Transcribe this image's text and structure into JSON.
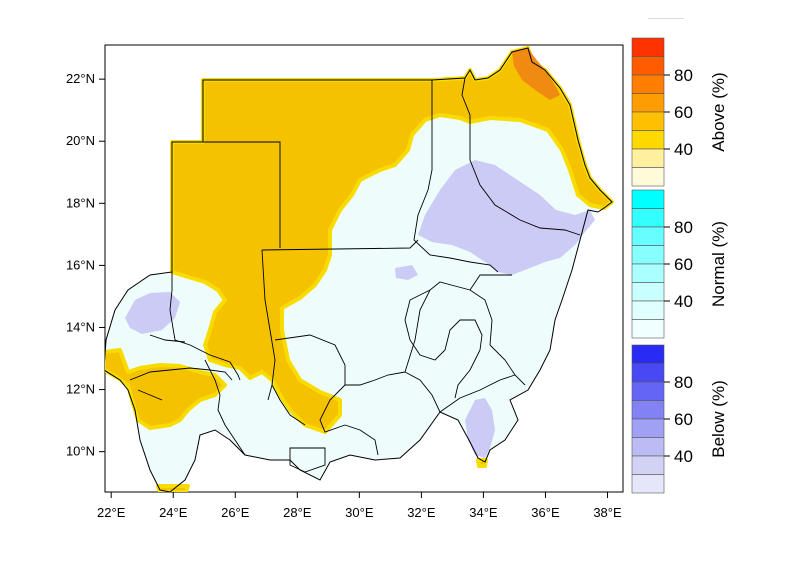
{
  "map": {
    "x_axis": {
      "ticks": [
        {
          "value": 22,
          "label": "22°E"
        },
        {
          "value": 24,
          "label": "24°E"
        },
        {
          "value": 26,
          "label": "26°E"
        },
        {
          "value": 28,
          "label": "28°E"
        },
        {
          "value": 30,
          "label": "30°E"
        },
        {
          "value": 32,
          "label": "32°E"
        },
        {
          "value": 34,
          "label": "34°E"
        },
        {
          "value": 36,
          "label": "36°E"
        },
        {
          "value": 38,
          "label": "38°E"
        }
      ]
    },
    "y_axis": {
      "ticks": [
        {
          "value": 22,
          "label": "22°N"
        },
        {
          "value": 20,
          "label": "20°N"
        },
        {
          "value": 18,
          "label": "18°N"
        },
        {
          "value": 16,
          "label": "16°N"
        },
        {
          "value": 14,
          "label": "14°N"
        },
        {
          "value": 12,
          "label": "12°N"
        },
        {
          "value": 10,
          "label": "10°N"
        }
      ]
    },
    "colors": {
      "above_region": "#f5c200",
      "above_edge": "#f8dc00",
      "above_high": "#f08a10",
      "normal_region": "#eefcfc",
      "below_region": "#cccbf5",
      "boundary": "#000000"
    }
  },
  "legend": {
    "above": {
      "title": "Above (%)",
      "labels": [
        "80",
        "60",
        "40"
      ],
      "colors": [
        "#ff3300",
        "#ff5c00",
        "#ff7d00",
        "#ff9c00",
        "#ffc000",
        "#ffd800",
        "#fff0a0",
        "#fffbd8"
      ]
    },
    "normal": {
      "title": "Normal (%)",
      "labels": [
        "80",
        "60",
        "40"
      ],
      "colors": [
        "#00ffff",
        "#33ffff",
        "#66ffff",
        "#88ffff",
        "#aaffff",
        "#c8ffff",
        "#e0ffff",
        "#f0ffff"
      ]
    },
    "below": {
      "title": "Below (%)",
      "labels": [
        "80",
        "60",
        "40"
      ],
      "colors": [
        "#2a2af5",
        "#4848f5",
        "#6464f5",
        "#8282f5",
        "#a0a0f5",
        "#bcbcf5",
        "#d2d2f5",
        "#e6e6fa"
      ]
    }
  }
}
